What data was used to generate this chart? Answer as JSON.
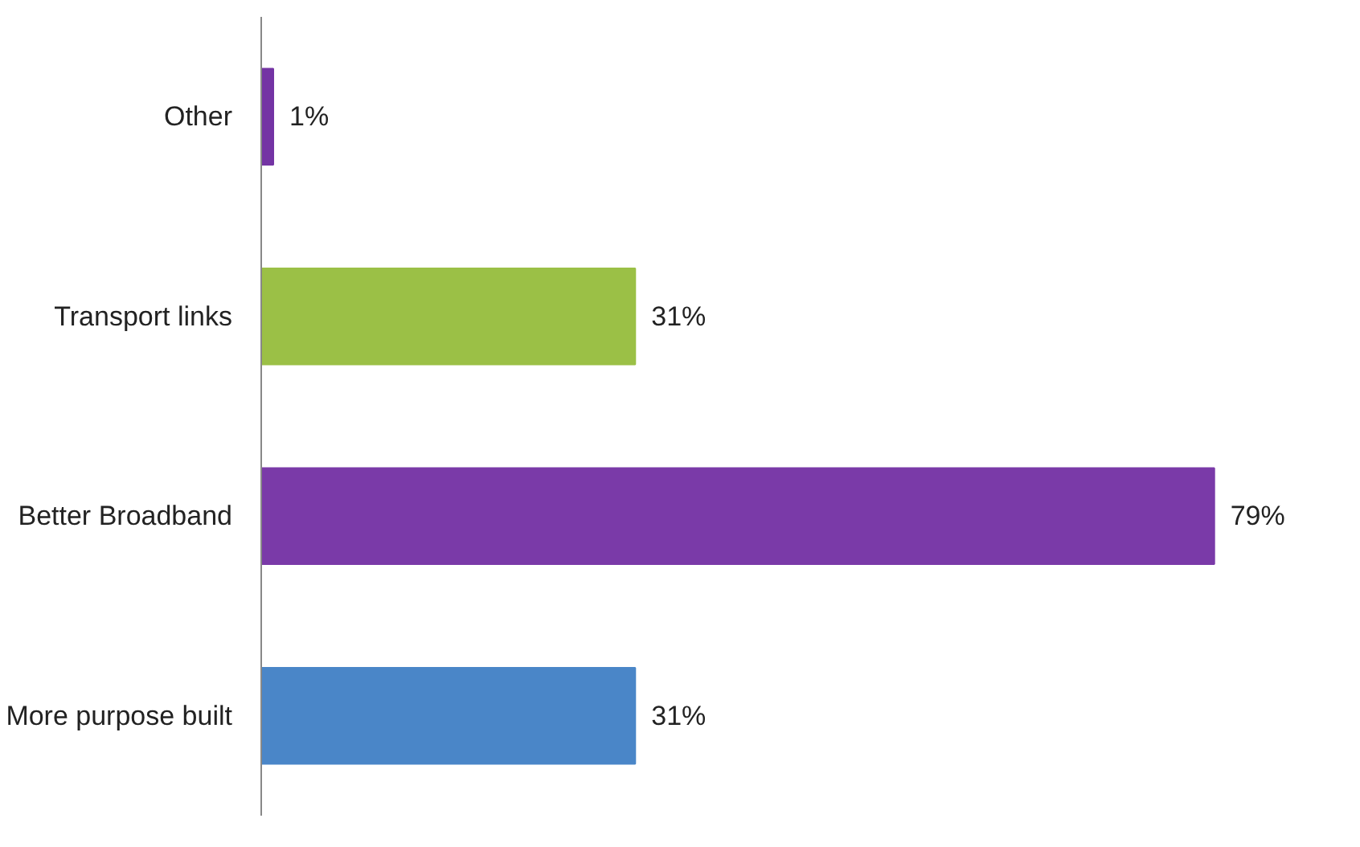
{
  "chart_data": {
    "type": "bar",
    "orientation": "horizontal",
    "categories": [
      "Other",
      "Transport links",
      "Better Broadband",
      "More purpose built"
    ],
    "values": [
      1,
      31,
      79,
      31
    ],
    "colors": [
      "#7434a4",
      "#9bc046",
      "#7a3aa8",
      "#4a86c8"
    ],
    "value_labels": [
      "1%",
      "31%",
      "79%",
      "31%"
    ]
  }
}
